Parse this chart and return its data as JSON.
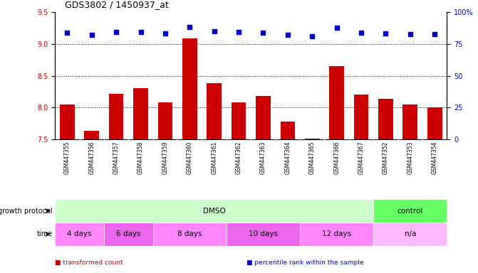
{
  "title": "GDS3802 / 1450937_at",
  "samples": [
    "GSM447355",
    "GSM447356",
    "GSM447357",
    "GSM447358",
    "GSM447359",
    "GSM447360",
    "GSM447361",
    "GSM447362",
    "GSM447363",
    "GSM447364",
    "GSM447365",
    "GSM447366",
    "GSM447367",
    "GSM447352",
    "GSM447353",
    "GSM447354"
  ],
  "bar_values": [
    8.05,
    7.63,
    8.22,
    8.3,
    8.08,
    9.09,
    8.38,
    8.08,
    8.18,
    7.78,
    7.51,
    8.65,
    8.2,
    8.14,
    8.05,
    8.0
  ],
  "percentile_values": [
    9.18,
    9.14,
    9.19,
    9.19,
    9.17,
    9.27,
    9.2,
    9.19,
    9.18,
    9.15,
    9.12,
    9.26,
    9.18,
    9.17,
    9.16,
    9.16
  ],
  "bar_color": "#CC0000",
  "percentile_color": "#0000CC",
  "ylim_left": [
    7.5,
    9.5
  ],
  "yticks_left": [
    7.5,
    8.0,
    8.5,
    9.0,
    9.5
  ],
  "ytick_labels_right": [
    "0",
    "25",
    "50",
    "75",
    "100%"
  ],
  "grid_values": [
    8.0,
    8.5,
    9.0
  ],
  "bar_bottom": 7.5,
  "growth_protocol_groups": [
    {
      "label": "DMSO",
      "start": 0,
      "end": 13,
      "color": "#CCFFCC"
    },
    {
      "label": "control",
      "start": 13,
      "end": 16,
      "color": "#66FF66"
    }
  ],
  "time_groups": [
    {
      "label": "4 days",
      "start": 0,
      "end": 2,
      "color": "#FF88FF"
    },
    {
      "label": "6 days",
      "start": 2,
      "end": 4,
      "color": "#EE66EE"
    },
    {
      "label": "8 days",
      "start": 4,
      "end": 7,
      "color": "#FF88FF"
    },
    {
      "label": "10 days",
      "start": 7,
      "end": 10,
      "color": "#EE66EE"
    },
    {
      "label": "12 days",
      "start": 10,
      "end": 13,
      "color": "#FF88FF"
    },
    {
      "label": "n/a",
      "start": 13,
      "end": 16,
      "color": "#FFB8FF"
    }
  ],
  "legend_items": [
    {
      "label": "transformed count",
      "color": "#CC0000"
    },
    {
      "label": "percentile rank within the sample",
      "color": "#0000CC"
    }
  ],
  "bg_color": "#FFFFFF",
  "tick_label_color_left": "#CC0000",
  "tick_label_color_right": "#0000CC",
  "sample_label_bg": "#D8D8D8",
  "divider_color": "#FFFFFF"
}
